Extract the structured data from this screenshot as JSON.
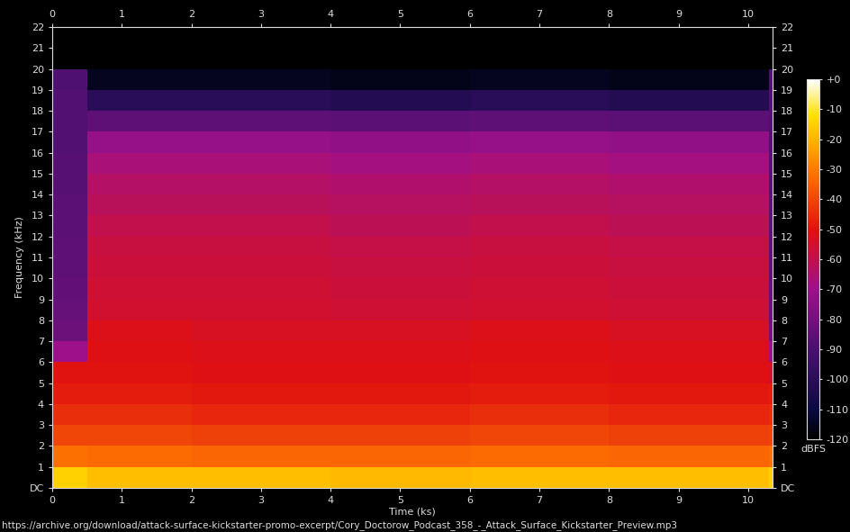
{
  "chart_data": {
    "type": "heatmap",
    "x_label": "Time (ks)",
    "y_label": "Frequency (kHz)",
    "footer": "https://archive.org/download/attack-surface-kickstarter-promo-excerpt/Cory_Doctorow_Podcast_358_-_Attack_Surface_Kickstarter_Preview.mp3",
    "x": [
      0,
      0.5,
      2,
      4,
      6,
      8,
      10.3,
      10.35
    ],
    "y": [
      0,
      1,
      2,
      3,
      4,
      5,
      6,
      7,
      8,
      9,
      10,
      11,
      12,
      13,
      14,
      15,
      16,
      17,
      18,
      19,
      20,
      21,
      22
    ],
    "cells": [
      [
        -15,
        -18,
        -18,
        -19,
        -18,
        -18,
        -15
      ],
      [
        -32,
        -33,
        -34,
        -34,
        -33,
        -34,
        -32
      ],
      [
        -40,
        -40,
        -41,
        -41,
        -40,
        -41,
        -40
      ],
      [
        -45,
        -45,
        -46,
        -46,
        -45,
        -46,
        -45
      ],
      [
        -48,
        -48,
        -49,
        -49,
        -48,
        -49,
        -48
      ],
      [
        -50,
        -50,
        -51,
        -51,
        -50,
        -51,
        -55
      ],
      [
        -70,
        -51,
        -52,
        -52,
        -51,
        -52,
        -70
      ],
      [
        -82,
        -52,
        -53,
        -53,
        -52,
        -53,
        -80
      ],
      [
        -83,
        -55,
        -55,
        -56,
        -55,
        -56,
        -82
      ],
      [
        -84,
        -56,
        -56,
        -57,
        -56,
        -57,
        -83
      ],
      [
        -85,
        -57,
        -57,
        -58,
        -57,
        -58,
        -84
      ],
      [
        -85,
        -58,
        -58,
        -59,
        -58,
        -59,
        -85
      ],
      [
        -86,
        -60,
        -60,
        -61,
        -60,
        -61,
        -86
      ],
      [
        -86,
        -62,
        -62,
        -63,
        -62,
        -63,
        -86
      ],
      [
        -87,
        -64,
        -64,
        -65,
        -64,
        -65,
        -87
      ],
      [
        -87,
        -67,
        -67,
        -68,
        -67,
        -68,
        -87
      ],
      [
        -88,
        -72,
        -72,
        -73,
        -72,
        -73,
        -88
      ],
      [
        -88,
        -85,
        -85,
        -86,
        -85,
        -86,
        -88
      ],
      [
        -88,
        -100,
        -100,
        -102,
        -100,
        -102,
        -88
      ],
      [
        -89,
        -115,
        -115,
        -116,
        -115,
        -116,
        -89
      ],
      [
        -120,
        -120,
        -120,
        -120,
        -120,
        -120,
        -120
      ],
      [
        -120,
        -120,
        -120,
        -120,
        -120,
        -120,
        -120
      ]
    ],
    "xlim": [
      0,
      10.35
    ],
    "xticks": [
      0,
      1,
      2,
      3,
      4,
      5,
      6,
      7,
      8,
      9,
      10
    ],
    "ylim": [
      0,
      22
    ],
    "yticks": [
      {
        "value": 0,
        "label": "DC"
      },
      1,
      2,
      3,
      4,
      5,
      6,
      7,
      8,
      9,
      10,
      11,
      12,
      13,
      14,
      15,
      16,
      17,
      18,
      19,
      20,
      21,
      22
    ],
    "colorbar": {
      "label": "dBFS",
      "range": [
        -120,
        0
      ],
      "ticks": [
        {
          "value": 0,
          "label": "+0"
        },
        -10,
        -20,
        -30,
        -40,
        -50,
        -60,
        -70,
        -80,
        -90,
        -100,
        -110,
        -120
      ]
    }
  }
}
